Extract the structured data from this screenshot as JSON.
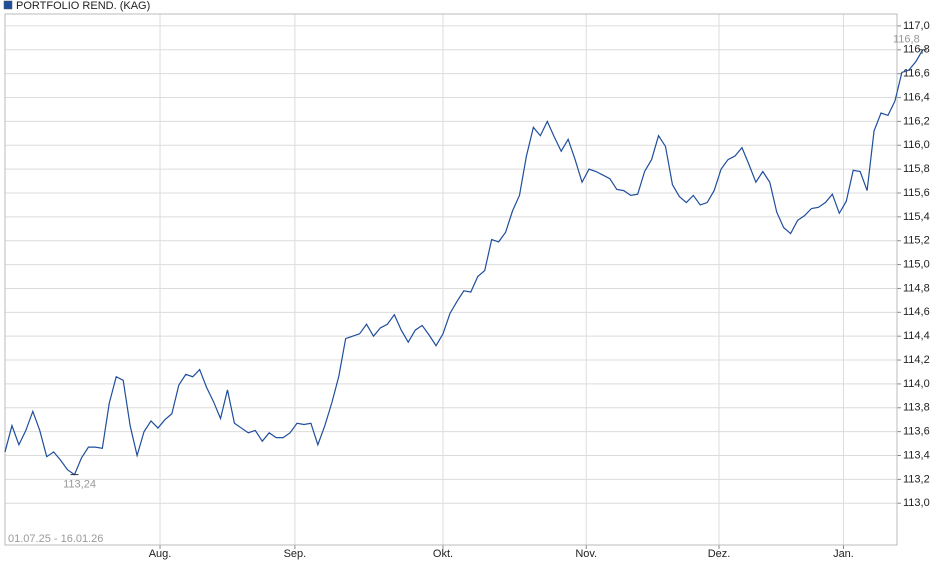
{
  "chart_data": {
    "type": "line",
    "legend": "PORTFOLIO REND. (KAG)",
    "date_range": "01.07.25 - 16.01.26",
    "series": [
      {
        "name": "PORTFOLIO REND. (KAG)",
        "color": "#1f4e9c",
        "values": [
          113.43,
          113.65,
          113.49,
          113.61,
          113.77,
          113.61,
          113.39,
          113.43,
          113.36,
          113.28,
          113.24,
          113.38,
          113.47,
          113.47,
          113.46,
          113.84,
          114.06,
          114.03,
          113.65,
          113.4,
          113.6,
          113.69,
          113.63,
          113.7,
          113.75,
          113.99,
          114.08,
          114.06,
          114.12,
          113.97,
          113.85,
          113.71,
          113.95,
          113.67,
          113.63,
          113.59,
          113.61,
          113.52,
          113.59,
          113.55,
          113.55,
          113.59,
          113.67,
          113.66,
          113.67,
          113.49,
          113.65,
          113.84,
          114.06,
          114.38,
          114.4,
          114.42,
          114.5,
          114.4,
          114.47,
          114.5,
          114.58,
          114.45,
          114.35,
          114.45,
          114.49,
          114.41,
          114.32,
          114.42,
          114.59,
          114.69,
          114.78,
          114.77,
          114.9,
          114.95,
          115.21,
          115.19,
          115.27,
          115.45,
          115.58,
          115.91,
          116.15,
          116.08,
          116.2,
          116.07,
          115.95,
          116.05,
          115.88,
          115.69,
          115.8,
          115.78,
          115.75,
          115.72,
          115.63,
          115.62,
          115.58,
          115.59,
          115.78,
          115.88,
          116.08,
          115.99,
          115.67,
          115.57,
          115.52,
          115.58,
          115.5,
          115.52,
          115.62,
          115.8,
          115.88,
          115.91,
          115.98,
          115.84,
          115.69,
          115.78,
          115.69,
          115.44,
          115.31,
          115.26,
          115.37,
          115.41,
          115.47,
          115.48,
          115.52,
          115.59,
          115.43,
          115.53,
          115.79,
          115.78,
          115.62,
          116.12,
          116.27,
          116.25,
          116.37,
          116.61,
          116.63,
          116.7,
          116.8
        ]
      }
    ],
    "annotations": [
      {
        "label": "113,24",
        "value": 113.24
      },
      {
        "label": "116,8",
        "value": 116.8
      }
    ],
    "xlim": [
      0,
      128.3
    ],
    "xticks": [
      {
        "value": 22.3,
        "label": "Aug."
      },
      {
        "value": 41.7,
        "label": "Sep."
      },
      {
        "value": 63.0,
        "label": "Okt."
      },
      {
        "value": 83.6,
        "label": "Nov."
      },
      {
        "value": 102.7,
        "label": "Dez."
      },
      {
        "value": 120.6,
        "label": "Jan."
      }
    ],
    "ylim": [
      112.65,
      117.1
    ],
    "yticks": [
      {
        "value": 113.0,
        "label": "113,0"
      },
      {
        "value": 113.2,
        "label": "113,2"
      },
      {
        "value": 113.4,
        "label": "113,4"
      },
      {
        "value": 113.6,
        "label": "113,6"
      },
      {
        "value": 113.8,
        "label": "113,8"
      },
      {
        "value": 114.0,
        "label": "114,0"
      },
      {
        "value": 114.2,
        "label": "114,2"
      },
      {
        "value": 114.4,
        "label": "114,4"
      },
      {
        "value": 114.6,
        "label": "114,6"
      },
      {
        "value": 114.8,
        "label": "114,8"
      },
      {
        "value": 115.0,
        "label": "115,0"
      },
      {
        "value": 115.2,
        "label": "115,2"
      },
      {
        "value": 115.4,
        "label": "115,4"
      },
      {
        "value": 115.6,
        "label": "115,6"
      },
      {
        "value": 115.8,
        "label": "115,8"
      },
      {
        "value": 116.0,
        "label": "116,0"
      },
      {
        "value": 116.2,
        "label": "116,2"
      },
      {
        "value": 116.4,
        "label": "116,4"
      },
      {
        "value": 116.6,
        "label": "116,6"
      },
      {
        "value": 116.8,
        "label": "116,8"
      },
      {
        "value": 117.0,
        "label": "117,0"
      }
    ],
    "grid": true
  }
}
